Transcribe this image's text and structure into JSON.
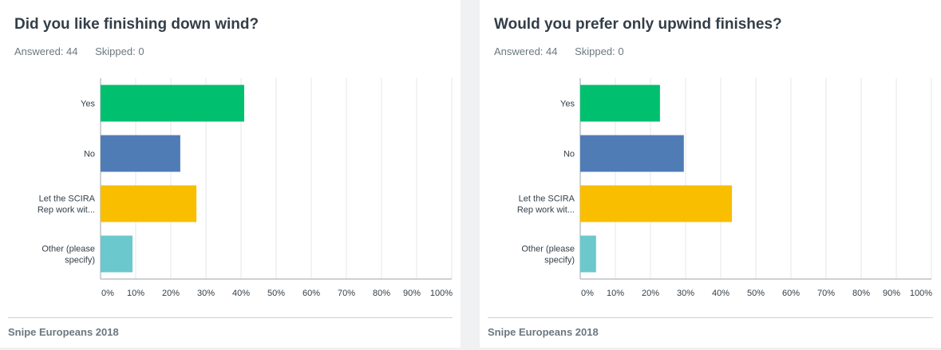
{
  "colors": {
    "yes": "#00bf6f",
    "no": "#507cb6",
    "scira": "#f9be00",
    "other": "#6bc8cd",
    "grid": "#e6e7e8",
    "axis": "#9da5aa"
  },
  "left_card": {
    "title": "Did you like finishing down wind?",
    "answered": "Answered: 44",
    "skipped": "Skipped: 0",
    "footer": "Snipe Europeans 2018"
  },
  "right_card": {
    "title": "Would you prefer only upwind finishes?",
    "answered": "Answered: 44",
    "skipped": "Skipped: 0",
    "footer": "Snipe Europeans 2018"
  },
  "chart_data": [
    {
      "type": "bar",
      "orientation": "horizontal",
      "title": "Did you like finishing down wind?",
      "categories": [
        [
          "Yes"
        ],
        [
          "No"
        ],
        [
          "Let the SCIRA",
          "Rep work wit..."
        ],
        [
          "Other (please",
          "specify)"
        ]
      ],
      "values": [
        40.9,
        22.7,
        27.3,
        9.1
      ],
      "xticks": [
        "0%",
        "10%",
        "20%",
        "30%",
        "40%",
        "50%",
        "60%",
        "70%",
        "80%",
        "90%",
        "100%"
      ],
      "xlim": [
        0,
        100
      ],
      "grid": true
    },
    {
      "type": "bar",
      "orientation": "horizontal",
      "title": "Would you prefer only upwind finishes?",
      "categories": [
        [
          "Yes"
        ],
        [
          "No"
        ],
        [
          "Let the SCIRA",
          "Rep work wit..."
        ],
        [
          "Other (please",
          "specify)"
        ]
      ],
      "values": [
        22.7,
        29.5,
        43.2,
        4.5
      ],
      "xticks": [
        "0%",
        "10%",
        "20%",
        "30%",
        "40%",
        "50%",
        "60%",
        "70%",
        "80%",
        "90%",
        "100%"
      ],
      "xlim": [
        0,
        100
      ],
      "grid": true
    }
  ]
}
